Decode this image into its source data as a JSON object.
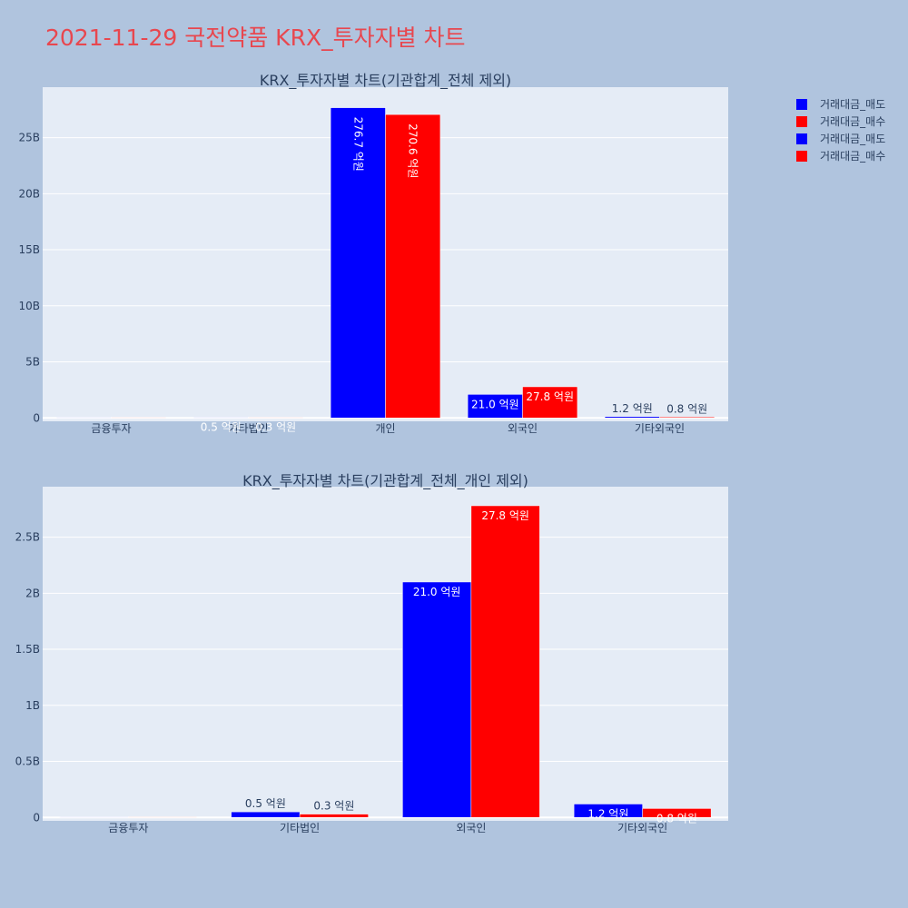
{
  "page": {
    "title": "2021-11-29 국전약품 KRX_투자자별 차트"
  },
  "legend": [
    {
      "label": "거래대금_매도",
      "color": "#0000ff"
    },
    {
      "label": "거래대금_매수",
      "color": "#ff0000"
    },
    {
      "label": "거래대금_매도",
      "color": "#0000ff"
    },
    {
      "label": "거래대금_매수",
      "color": "#ff0000"
    }
  ],
  "chart_data": [
    {
      "type": "bar",
      "title": "KRX_투자자별 차트(기관합계_전체 제외)",
      "categories": [
        "금융투자",
        "기타법인",
        "개인",
        "외국인",
        "기타외국인"
      ],
      "series": [
        {
          "name": "거래대금_매도",
          "color": "#0000ff",
          "values": [
            0,
            50000000,
            27670000000,
            2100000000,
            120000000
          ],
          "labels": [
            "",
            "0.5 억원",
            "276.7 억원",
            "21.0 억원",
            "1.2 억원"
          ]
        },
        {
          "name": "거래대금_매수",
          "color": "#ff0000",
          "values": [
            0,
            30000000,
            27060000000,
            2780000000,
            80000000
          ],
          "labels": [
            "",
            "0.3 억원",
            "270.6 억원",
            "27.8 억원",
            "0.8 억원"
          ]
        }
      ],
      "ylim": [
        -300000000,
        29500000000
      ],
      "yticks": [
        0,
        5000000000,
        10000000000,
        15000000000,
        20000000000,
        25000000000
      ],
      "ytick_labels": [
        "0",
        "5B",
        "10B",
        "15B",
        "20B",
        "25B"
      ],
      "grid": true
    },
    {
      "type": "bar",
      "title": "KRX_투자자별 차트(기관합계_전체_개인 제외)",
      "categories": [
        "금융투자",
        "기타법인",
        "외국인",
        "기타외국인"
      ],
      "series": [
        {
          "name": "거래대금_매도",
          "color": "#0000ff",
          "values": [
            0,
            50000000,
            2100000000,
            120000000
          ],
          "labels": [
            "",
            "0.5 억원",
            "21.0 억원",
            "1.2 억원"
          ]
        },
        {
          "name": "거래대금_매수",
          "color": "#ff0000",
          "values": [
            0,
            30000000,
            2780000000,
            80000000
          ],
          "labels": [
            "",
            "0.3 억원",
            "27.8 억원",
            "0.8 억원"
          ]
        }
      ],
      "ylim": [
        -30000000,
        2950000000
      ],
      "yticks": [
        0,
        500000000,
        1000000000,
        1500000000,
        2000000000,
        2500000000
      ],
      "ytick_labels": [
        "0",
        "0.5B",
        "1B",
        "1.5B",
        "2B",
        "2.5B"
      ],
      "grid": true
    }
  ]
}
